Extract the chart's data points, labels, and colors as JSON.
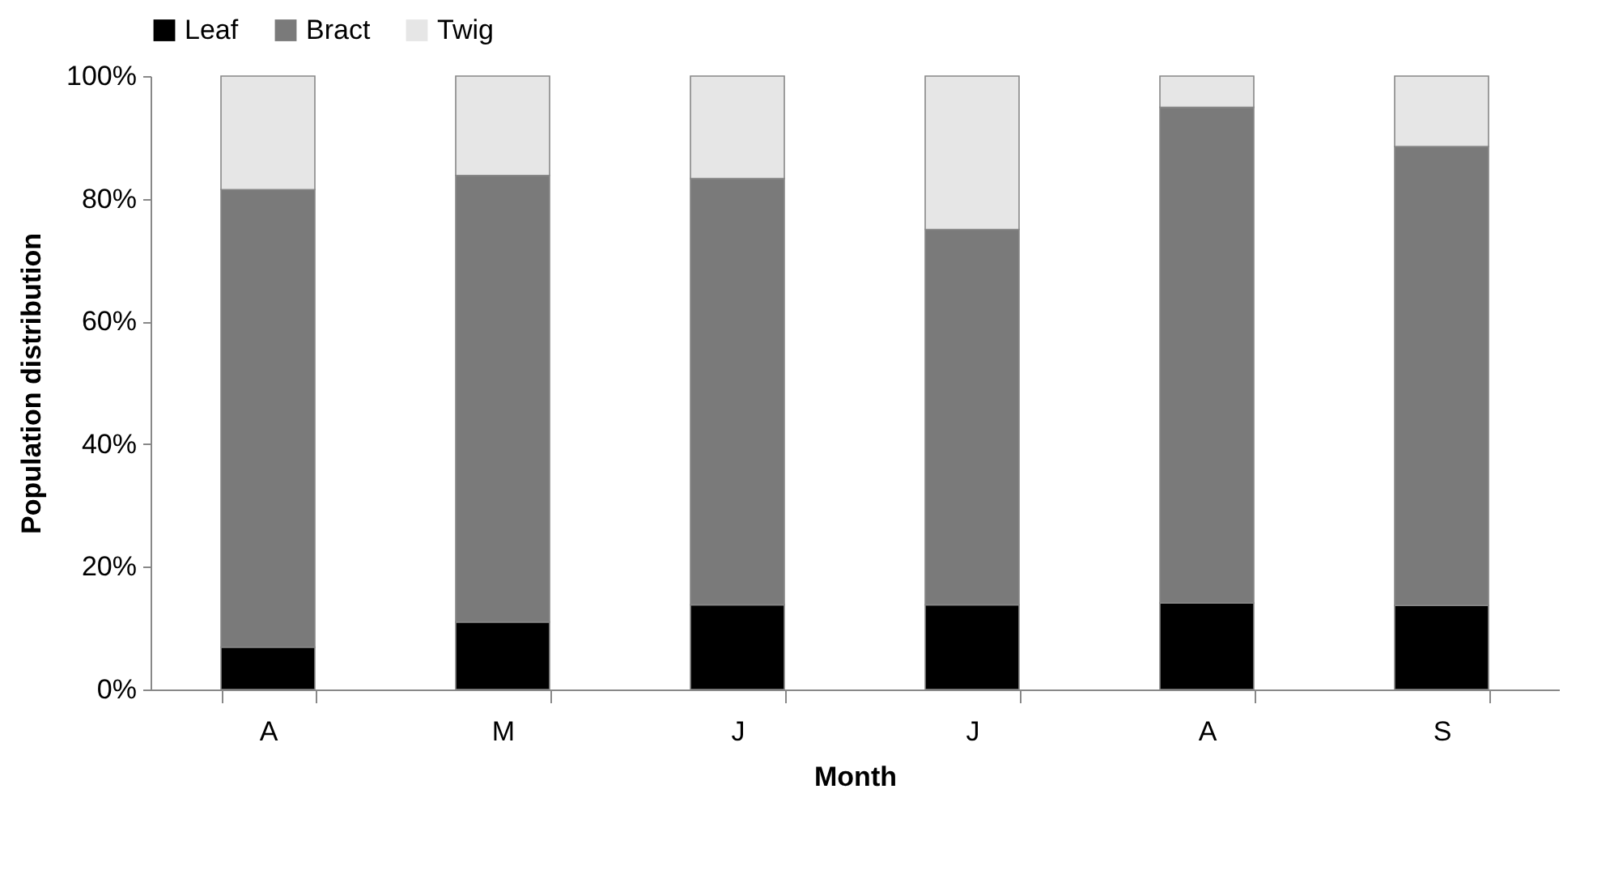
{
  "chart_data": {
    "type": "bar",
    "stacked": true,
    "xlabel": "Month",
    "ylabel": "Population distribution",
    "categories": [
      "A",
      "M",
      "J",
      "J",
      "A",
      "S"
    ],
    "series": [
      {
        "name": "Leaf",
        "color": "#000000",
        "values": [
          6.9,
          11.0,
          13.8,
          13.8,
          14.1,
          13.7
        ]
      },
      {
        "name": "Bract",
        "color": "#7a7a7a",
        "values": [
          74.6,
          72.8,
          69.5,
          61.2,
          80.8,
          74.8
        ]
      },
      {
        "name": "Twig",
        "color": "#e6e6e6",
        "values": [
          18.5,
          16.2,
          16.7,
          25.0,
          5.1,
          11.5
        ]
      }
    ],
    "ylim": [
      0,
      100
    ],
    "yticks": [
      {
        "value": 0,
        "label": "0%"
      },
      {
        "value": 20,
        "label": "20%"
      },
      {
        "value": 40,
        "label": "40%"
      },
      {
        "value": 60,
        "label": "60%"
      },
      {
        "value": 80,
        "label": "80%"
      },
      {
        "value": 100,
        "label": "100%"
      }
    ],
    "grid": false,
    "legend": "top"
  }
}
